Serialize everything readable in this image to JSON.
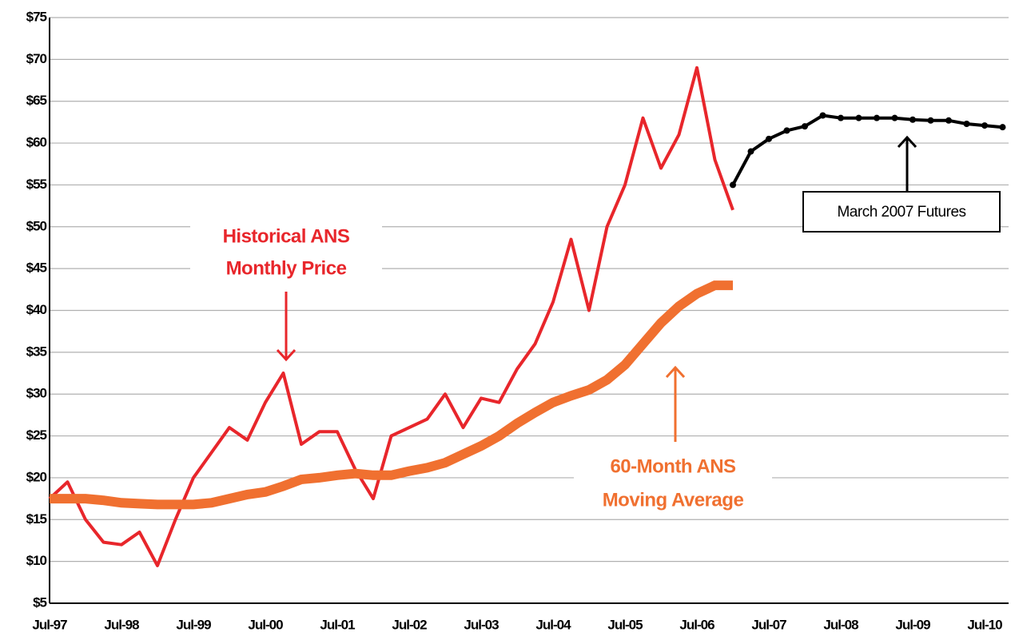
{
  "chart_data": {
    "type": "line",
    "categories": [
      "Jul-97",
      null,
      null,
      null,
      "Jul-98",
      null,
      null,
      null,
      "Jul-99",
      null,
      null,
      null,
      "Jul-00",
      null,
      null,
      null,
      "Jul-01",
      null,
      null,
      null,
      "Jul-02",
      null,
      null,
      null,
      "Jul-03",
      null,
      null,
      null,
      "Jul-04",
      null,
      null,
      null,
      "Jul-05",
      null,
      null,
      null,
      "Jul-06",
      null,
      null,
      null,
      "Jul-07",
      null,
      null,
      null,
      "Jul-08",
      null,
      null,
      null,
      "Jul-09",
      null,
      null,
      null,
      "Jul-10",
      null
    ],
    "series": [
      {
        "name": "Historical ANS Monthly Price",
        "color": "#e8262b",
        "values": [
          17.5,
          19.5,
          15,
          12.3,
          12,
          13.5,
          9.5,
          15,
          20,
          23,
          26,
          24.5,
          29,
          32.5,
          24,
          25.5,
          25.5,
          21,
          17.5,
          25,
          26,
          27,
          30,
          26,
          29.5,
          29,
          33,
          36,
          41,
          48.5,
          40,
          50,
          55,
          63,
          57,
          61,
          69,
          58,
          52,
          null,
          null,
          null,
          null,
          null,
          null,
          null,
          null,
          null,
          null,
          null,
          null,
          null,
          null,
          null
        ]
      },
      {
        "name": "60-Month ANS Moving Average",
        "color": "#f07030",
        "values": [
          17.5,
          17.5,
          17.5,
          17.3,
          17,
          16.9,
          16.8,
          16.8,
          16.8,
          17,
          17.5,
          18,
          18.3,
          19,
          19.8,
          20,
          20.3,
          20.5,
          20.3,
          20.3,
          20.8,
          21.2,
          21.8,
          22.8,
          23.8,
          25,
          26.5,
          27.8,
          29,
          29.8,
          30.5,
          31.7,
          33.5,
          36,
          38.5,
          40.5,
          42,
          43,
          43,
          null,
          null,
          null,
          null,
          null,
          null,
          null,
          null,
          null,
          null,
          null,
          null,
          null,
          null,
          null
        ]
      },
      {
        "name": "March 2007 Futures",
        "color": "#000000",
        "values": [
          null,
          null,
          null,
          null,
          null,
          null,
          null,
          null,
          null,
          null,
          null,
          null,
          null,
          null,
          null,
          null,
          null,
          null,
          null,
          null,
          null,
          null,
          null,
          null,
          null,
          null,
          null,
          null,
          null,
          null,
          null,
          null,
          null,
          null,
          null,
          null,
          null,
          null,
          55,
          59,
          60.5,
          61.5,
          62,
          63.3,
          63,
          63,
          63,
          63,
          62.8,
          62.7,
          62.7,
          62.3,
          62.1,
          61.9
        ]
      }
    ],
    "annotations": [
      {
        "lines": [
          "Historical ANS",
          "Monthly Price"
        ],
        "color": "#e8262b"
      },
      {
        "lines": [
          "60-Month ANS",
          "Moving Average"
        ],
        "color": "#f07030"
      },
      {
        "lines": [
          "March 2007 Futures"
        ],
        "color": "#000000"
      }
    ],
    "ylim": [
      5,
      75
    ],
    "yticks": [
      {
        "value": 5,
        "label": "$5"
      },
      {
        "value": 10,
        "label": "$10"
      },
      {
        "value": 15,
        "label": "$15"
      },
      {
        "value": 20,
        "label": "$20"
      },
      {
        "value": 25,
        "label": "$25"
      },
      {
        "value": 30,
        "label": "$30"
      },
      {
        "value": 35,
        "label": "$35"
      },
      {
        "value": 40,
        "label": "$40"
      },
      {
        "value": 45,
        "label": "$45"
      },
      {
        "value": 50,
        "label": "$50"
      },
      {
        "value": 55,
        "label": "$55"
      },
      {
        "value": 60,
        "label": "$60"
      },
      {
        "value": 65,
        "label": "$65"
      },
      {
        "value": 70,
        "label": "$70"
      },
      {
        "value": 75,
        "label": "$75"
      }
    ],
    "grid": true
  }
}
